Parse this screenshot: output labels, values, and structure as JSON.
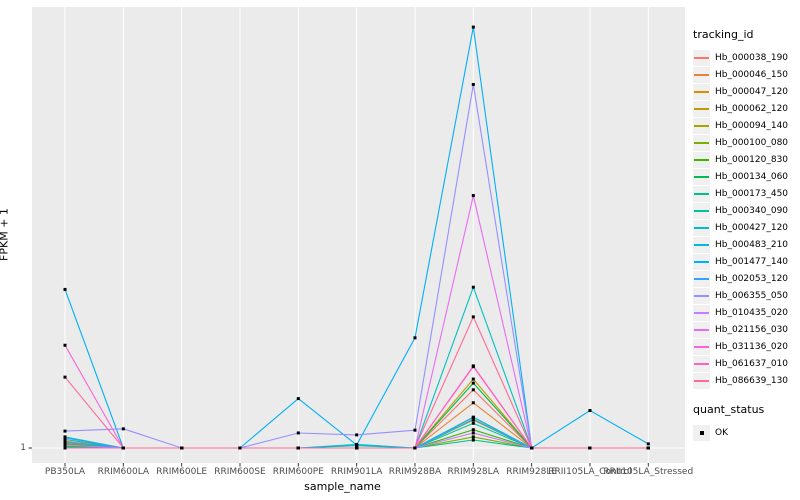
{
  "figure": {
    "background": "#FFFFFF",
    "panel_background": "#EBEBEB",
    "gridline_color": "#FFFFFF",
    "tick_color": "#333333",
    "tick_label_color": "#4D4D4D",
    "marker_color": "#000000"
  },
  "chart_data": {
    "type": "line",
    "title": "",
    "xlabel": "sample_name",
    "ylabel": "FPKM + 1",
    "y_scale": "log10",
    "y_tick_labels": [
      "1"
    ],
    "y_tick_values": [
      1
    ],
    "ylim_log_decades": 3.1,
    "grid": "major-vertical",
    "categories": [
      "PB350LA",
      "RRIM600LA",
      "RRIM600LE",
      "RRIM600SE",
      "RRIM600PE",
      "RRIM901LA",
      "RRIM928BA",
      "RRIM928LA",
      "RRIM928LE",
      "RRII105LA_Control",
      "RRII105LA_Stressed"
    ],
    "legend": {
      "position": "right",
      "title": "tracking_id"
    },
    "point_legend": {
      "title": "quant_status",
      "items": [
        {
          "label": "OK",
          "shape": "square",
          "color": "#000000"
        }
      ]
    },
    "series": [
      {
        "name": "Hb_000038_190",
        "color": "#F8766D",
        "values": [
          1.12,
          1,
          1,
          1,
          1,
          1,
          1,
          2.6,
          1,
          1,
          1
        ]
      },
      {
        "name": "Hb_000046_150",
        "color": "#EA8331",
        "values": [
          1.05,
          1,
          1,
          1,
          1,
          1,
          1,
          2.1,
          1,
          1,
          1
        ]
      },
      {
        "name": "Hb_000047_120",
        "color": "#D89000",
        "values": [
          1,
          1,
          1,
          1,
          1,
          1,
          1,
          1.65,
          1,
          1,
          1
        ]
      },
      {
        "name": "Hb_000062_120",
        "color": "#C09B00",
        "values": [
          1.08,
          1,
          1,
          1,
          1,
          1,
          1,
          3.1,
          1,
          1,
          1
        ]
      },
      {
        "name": "Hb_000094_140",
        "color": "#A3A500",
        "values": [
          1,
          1,
          1,
          1,
          1,
          1,
          1,
          1.58,
          1,
          1,
          1
        ]
      },
      {
        "name": "Hb_000100_080",
        "color": "#7CAE00",
        "values": [
          1.03,
          1,
          1,
          1,
          1,
          1,
          1,
          1.2,
          1,
          1,
          1
        ]
      },
      {
        "name": "Hb_000120_830",
        "color": "#39B600",
        "values": [
          1,
          1,
          1,
          1,
          1,
          1,
          1,
          1.35,
          1,
          1,
          1
        ]
      },
      {
        "name": "Hb_000134_060",
        "color": "#00BB4E",
        "values": [
          1.06,
          1,
          1,
          1,
          1,
          1,
          1,
          2.9,
          1,
          1,
          1
        ]
      },
      {
        "name": "Hb_000173_450",
        "color": "#00C087",
        "values": [
          1.02,
          1,
          1,
          1,
          1,
          1,
          1,
          1.14,
          1,
          1,
          1
        ]
      },
      {
        "name": "Hb_000340_090",
        "color": "#00C1A3",
        "values": [
          1.15,
          1,
          1,
          1,
          1,
          1.04,
          1,
          1.5,
          1,
          1,
          1
        ]
      },
      {
        "name": "Hb_000427_120",
        "color": "#00BFC4",
        "values": [
          1.2,
          1,
          1,
          1,
          1,
          1,
          1,
          14,
          1,
          1,
          1
        ]
      },
      {
        "name": "Hb_000483_210",
        "color": "#00BAE0",
        "values": [
          1.1,
          1,
          1,
          1,
          1,
          1.06,
          1,
          1.66,
          1,
          1,
          1
        ]
      },
      {
        "name": "Hb_001477_140",
        "color": "#00B0F6",
        "values": [
          13.5,
          1,
          1,
          1,
          2.25,
          1.05,
          6.1,
          1000,
          1,
          1.85,
          1.07
        ]
      },
      {
        "name": "Hb_002053_120",
        "color": "#35A2FF",
        "values": [
          1.18,
          1,
          1,
          1,
          1,
          1,
          1,
          1.6,
          1,
          1,
          1
        ]
      },
      {
        "name": "Hb_006355_050",
        "color": "#9590FF",
        "values": [
          1.32,
          1.37,
          1,
          1,
          1.28,
          1.24,
          1.34,
          390,
          1,
          1,
          1
        ]
      },
      {
        "name": "Hb_010435_020",
        "color": "#C77CFF",
        "values": [
          1.05,
          1,
          1,
          1,
          1,
          1,
          1,
          1.28,
          1,
          1,
          1
        ]
      },
      {
        "name": "Hb_021156_030",
        "color": "#E76BF3",
        "values": [
          1,
          1,
          1,
          1,
          1,
          1,
          1,
          63,
          1,
          1,
          1
        ]
      },
      {
        "name": "Hb_031136_020",
        "color": "#FA62DB",
        "values": [
          5.4,
          1,
          1,
          1,
          1,
          1,
          1,
          3.85,
          1,
          1,
          1
        ]
      },
      {
        "name": "Hb_061637_010",
        "color": "#FF62BC",
        "values": [
          1,
          1,
          1,
          1,
          1,
          1,
          1,
          3.8,
          1,
          1,
          1
        ]
      },
      {
        "name": "Hb_086639_130",
        "color": "#FF6A98",
        "values": [
          3.2,
          1,
          1,
          1,
          1,
          1,
          1,
          8.6,
          1,
          1,
          1
        ]
      }
    ]
  }
}
